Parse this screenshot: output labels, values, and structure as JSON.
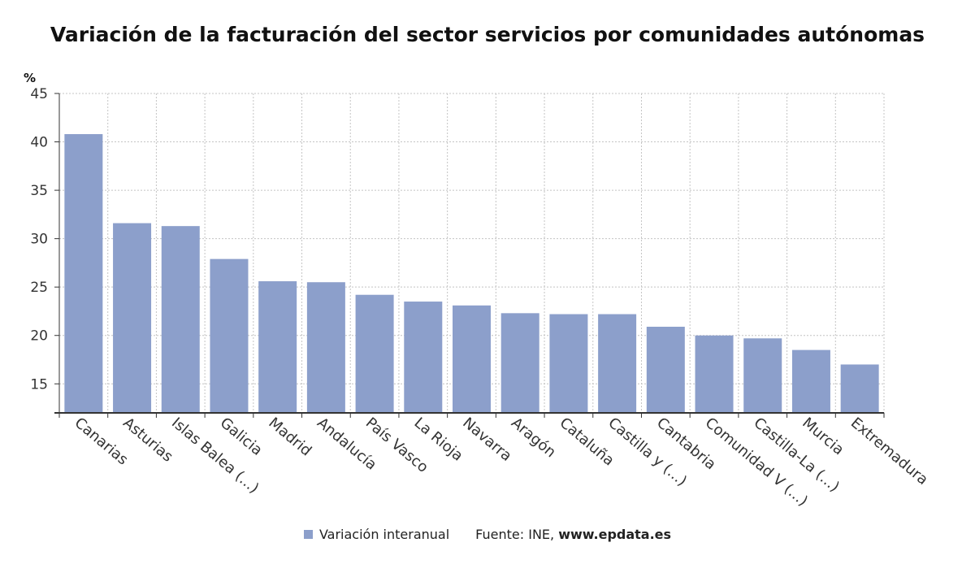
{
  "chart_data": {
    "type": "bar",
    "title": "Variación de la facturación del sector servicios por comunidades autónomas",
    "ylabel": "%",
    "xlabel": "",
    "ylim": [
      12,
      45
    ],
    "yticks": [
      15,
      20,
      25,
      30,
      35,
      40,
      45
    ],
    "grid": true,
    "categories": [
      "Canarias",
      "Asturias",
      "Islas Balea (...)",
      "Galicia",
      "Madrid",
      "Andalucía",
      "País Vasco",
      "La Rioja",
      "Navarra",
      "Aragón",
      "Cataluña",
      "Castilla y (...)",
      "Cantabria",
      "Comunidad V (...)",
      "Castilla-La (...)",
      "Murcia",
      "Extremadura"
    ],
    "series": [
      {
        "name": "Variación interanual",
        "color": "#8c9fcb",
        "values": [
          40.8,
          31.6,
          31.3,
          27.9,
          25.6,
          25.5,
          24.2,
          23.5,
          23.1,
          22.3,
          22.2,
          22.2,
          20.9,
          20.0,
          19.7,
          18.5,
          17.0
        ]
      }
    ],
    "legend_position": "bottom"
  },
  "legend": {
    "series_label": "Variación interanual",
    "source_prefix": "Fuente: INE, ",
    "source_url": "www.epdata.es"
  }
}
